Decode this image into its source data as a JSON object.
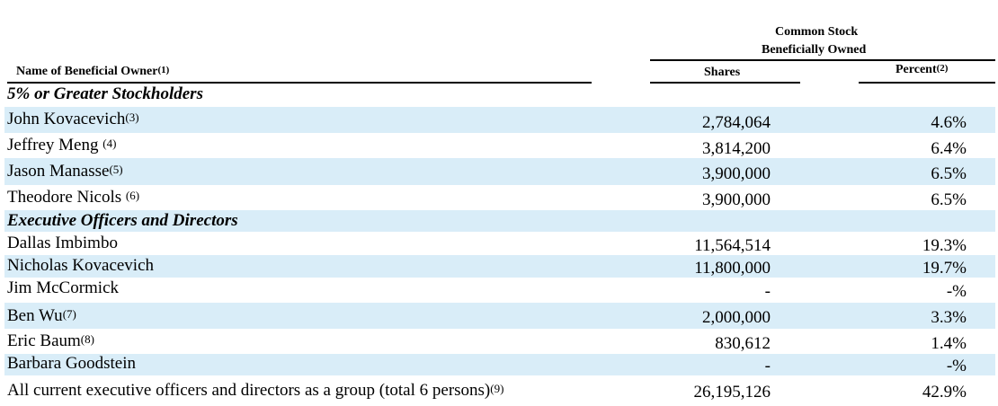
{
  "header": {
    "group_line1": "Common Stock",
    "group_line2": "Beneficially Owned",
    "name_col": "Name of Beneficial Owner",
    "name_col_note": "(1)",
    "shares_col": "Shares",
    "percent_col": "Percent",
    "percent_col_note": "(2)"
  },
  "sections": [
    {
      "title": "5% or Greater Stockholders"
    },
    {
      "title": "Executive Officers and Directors"
    }
  ],
  "rows": [
    {
      "name": "John Kovacevich",
      "note": "(3)",
      "shares": "2,784,064",
      "percent": "4.6%"
    },
    {
      "name": "Jeffrey Meng ",
      "note": "(4)",
      "shares": "3,814,200",
      "percent": "6.4%"
    },
    {
      "name": "Jason Manasse",
      "note": "(5)",
      "shares": "3,900,000",
      "percent": "6.5%"
    },
    {
      "name": "Theodore Nicols ",
      "note": "(6)",
      "shares": "3,900,000",
      "percent": "6.5%"
    },
    {
      "name": "Dallas Imbimbo",
      "note": "",
      "shares": "11,564,514",
      "percent": "19.3%"
    },
    {
      "name": "Nicholas Kovacevich",
      "note": "",
      "shares": "11,800,000",
      "percent": "19.7%"
    },
    {
      "name": "Jim McCormick",
      "note": "",
      "shares": "-",
      "percent": "-%"
    },
    {
      "name": "Ben Wu",
      "note": "(7)",
      "shares": "2,000,000",
      "percent": "3.3%"
    },
    {
      "name": "Eric Baum",
      "note": "(8)",
      "shares": "830,612",
      "percent": "1.4%"
    },
    {
      "name": "Barbara Goodstein",
      "note": "",
      "shares": "-",
      "percent": "-%"
    },
    {
      "name": "All current executive officers and directors as a group (total 6 persons)",
      "note": "(9)",
      "shares": "26,195,126",
      "percent": "42.9%"
    }
  ]
}
